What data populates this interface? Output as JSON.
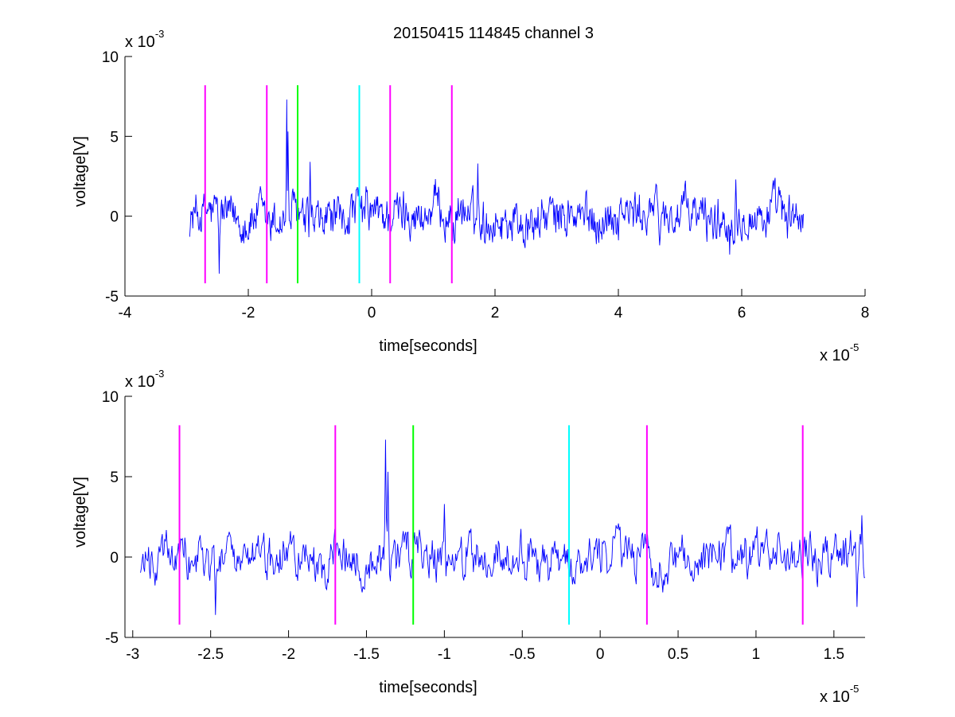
{
  "figure": {
    "title": "20150415 114845 channel 3",
    "colors": {
      "signal": "#0000ff",
      "marker_magenta": "#ff00ff",
      "marker_green": "#00ff00",
      "marker_cyan": "#00ffff",
      "axes": "#000000",
      "background": "#ffffff"
    }
  },
  "chart_data": [
    {
      "type": "line",
      "panel": "top",
      "title": "20150415 114845 channel 3",
      "xlabel": "time[seconds]",
      "ylabel": "voltage[V]",
      "x_multiplier": {
        "base": "x 10",
        "exponent": "-5"
      },
      "y_multiplier": {
        "base": "x 10",
        "exponent": "-3"
      },
      "xlim": [
        -4,
        8
      ],
      "ylim": [
        -5,
        10
      ],
      "x_ticks": [
        -4,
        -2,
        0,
        2,
        4,
        6,
        8
      ],
      "x_tick_labels": [
        "-4",
        "-2",
        "0",
        "2",
        "4",
        "6",
        "8"
      ],
      "y_ticks": [
        -5,
        0,
        5,
        10
      ],
      "y_tick_labels": [
        "-5",
        "0",
        "5",
        "10"
      ],
      "grid": false,
      "legend": "none",
      "series": [
        {
          "color": "#0000ff",
          "x_range": [
            -2.95,
            7.0
          ],
          "points": 1000,
          "noise_amplitude": 1.0,
          "spikes": [
            {
              "x": -1.38,
              "y": 7.3
            },
            {
              "x": -1.36,
              "y": 5.3
            },
            {
              "x": 1.72,
              "y": 3.3
            },
            {
              "x": -1.0,
              "y": 3.4
            },
            {
              "x": 5.9,
              "y": 2.3
            },
            {
              "x": 5.8,
              "y": -2.4
            },
            {
              "x": -2.47,
              "y": -3.6
            }
          ]
        }
      ],
      "markers": [
        {
          "x": -2.7,
          "y_range": [
            -4.2,
            8.2
          ],
          "color": "#ff00ff"
        },
        {
          "x": -1.7,
          "y_range": [
            -4.2,
            8.2
          ],
          "color": "#ff00ff"
        },
        {
          "x": -1.2,
          "y_range": [
            -4.2,
            8.2
          ],
          "color": "#00ff00"
        },
        {
          "x": -0.2,
          "y_range": [
            -4.2,
            8.2
          ],
          "color": "#00ffff"
        },
        {
          "x": 0.3,
          "y_range": [
            -4.2,
            8.2
          ],
          "color": "#ff00ff"
        },
        {
          "x": 1.3,
          "y_range": [
            -4.2,
            8.2
          ],
          "color": "#ff00ff"
        }
      ]
    },
    {
      "type": "line",
      "panel": "bottom",
      "xlabel": "time[seconds]",
      "ylabel": "voltage[V]",
      "x_multiplier": {
        "base": "x 10",
        "exponent": "-5"
      },
      "y_multiplier": {
        "base": "x 10",
        "exponent": "-3"
      },
      "xlim": [
        -3.05,
        1.7
      ],
      "ylim": [
        -5,
        10
      ],
      "x_ticks": [
        -3,
        -2.5,
        -2,
        -1.5,
        -1,
        -0.5,
        0,
        0.5,
        1,
        1.5
      ],
      "x_tick_labels": [
        "-3",
        "-2.5",
        "-2",
        "-1.5",
        "-1",
        "-0.5",
        "0",
        "0.5",
        "1",
        "1.5"
      ],
      "y_ticks": [
        -5,
        0,
        5,
        10
      ],
      "y_tick_labels": [
        "-5",
        "0",
        "5",
        "10"
      ],
      "grid": false,
      "legend": "none",
      "series": [
        {
          "color": "#0000ff",
          "x_range": [
            -2.95,
            1.7
          ],
          "points": 900,
          "noise_amplitude": 1.0,
          "spikes": [
            {
              "x": -1.38,
              "y": 7.3
            },
            {
              "x": -1.36,
              "y": 5.3
            },
            {
              "x": -1.0,
              "y": 3.3
            },
            {
              "x": -2.47,
              "y": -3.6
            },
            {
              "x": 1.65,
              "y": -3.1
            },
            {
              "x": 1.68,
              "y": 2.6
            }
          ]
        }
      ],
      "markers": [
        {
          "x": -2.7,
          "y_range": [
            -4.2,
            8.2
          ],
          "color": "#ff00ff"
        },
        {
          "x": -1.7,
          "y_range": [
            -4.2,
            8.2
          ],
          "color": "#ff00ff"
        },
        {
          "x": -1.2,
          "y_range": [
            -4.2,
            8.2
          ],
          "color": "#00ff00"
        },
        {
          "x": -0.2,
          "y_range": [
            -4.2,
            8.2
          ],
          "color": "#00ffff"
        },
        {
          "x": 0.3,
          "y_range": [
            -4.2,
            8.2
          ],
          "color": "#ff00ff"
        },
        {
          "x": 1.3,
          "y_range": [
            -4.2,
            8.2
          ],
          "color": "#ff00ff"
        }
      ]
    }
  ]
}
